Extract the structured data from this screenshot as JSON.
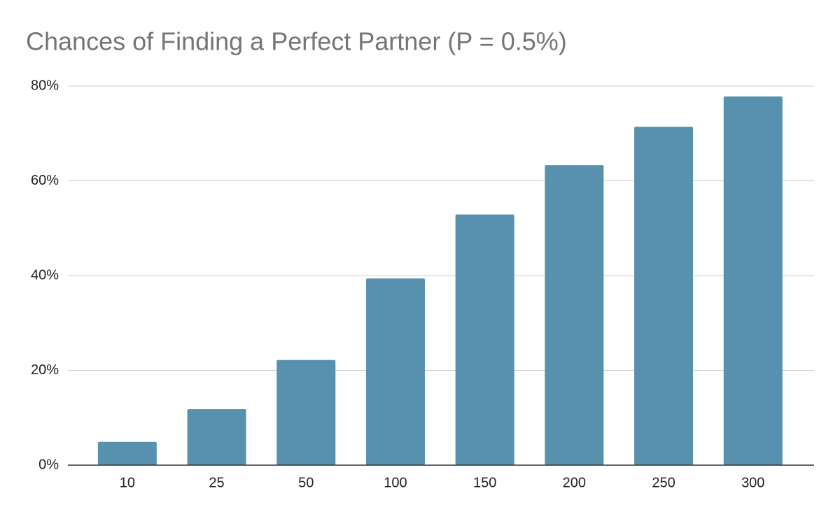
{
  "chart_data": {
    "type": "bar",
    "title": "Chances of Finding a Perfect Partner (P = 0.5%)",
    "categories": [
      "10",
      "25",
      "50",
      "100",
      "150",
      "200",
      "250",
      "300"
    ],
    "values": [
      4.9,
      11.8,
      22.2,
      39.4,
      52.9,
      63.3,
      71.4,
      77.8
    ],
    "color": "#5891ae",
    "ylim": [
      0,
      80
    ],
    "yticks": [
      {
        "value": 0,
        "label": "0%"
      },
      {
        "value": 20,
        "label": "20%"
      },
      {
        "value": 40,
        "label": "40%"
      },
      {
        "value": 60,
        "label": "60%"
      },
      {
        "value": 80,
        "label": "80%"
      }
    ],
    "grid": true
  }
}
